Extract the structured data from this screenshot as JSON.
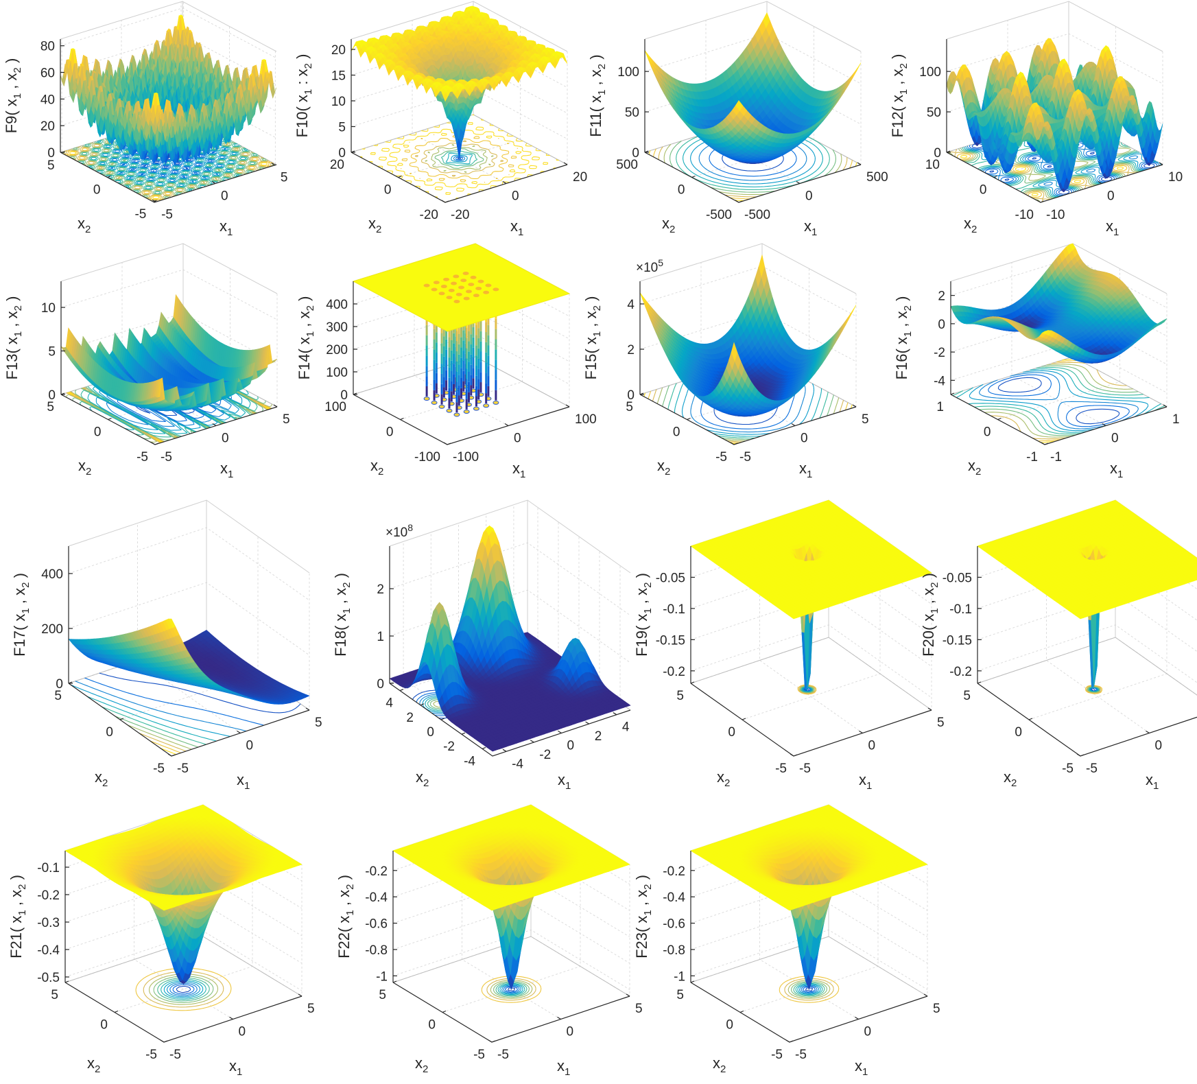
{
  "axis_labels": {
    "x1": [
      "x",
      "1"
    ],
    "x2": [
      "x",
      "2"
    ]
  },
  "chart_data": [
    {
      "type": "surface",
      "name": "F9",
      "zlabel": [
        "F9( x",
        "1",
        " , x",
        "2",
        " )"
      ],
      "zticks": [
        0,
        20,
        40,
        60,
        80
      ],
      "zlim": [
        0,
        85
      ],
      "xlim": [
        -5.12,
        5.12
      ],
      "x1ticks": [
        -5,
        0,
        5
      ],
      "x2ticks": [
        -5,
        0,
        5
      ],
      "contours": true
    },
    {
      "type": "surface",
      "name": "F10",
      "zlabel": [
        "F10( x",
        "1",
        " : x",
        "2",
        " )"
      ],
      "zticks": [
        0,
        5,
        10,
        15,
        20
      ],
      "zlim": [
        0,
        22
      ],
      "xlim": [
        -20,
        20
      ],
      "x1ticks": [
        -20,
        0,
        20
      ],
      "x2ticks": [
        -20,
        0,
        20
      ],
      "contours": true
    },
    {
      "type": "surface",
      "name": "F11",
      "zlabel": [
        "F11( x",
        "1",
        " , x",
        "2",
        " )"
      ],
      "zticks": [
        0,
        50,
        100
      ],
      "zlim": [
        0,
        140
      ],
      "xlim": [
        -500,
        500
      ],
      "x1ticks": [
        -500,
        0,
        500
      ],
      "x2ticks": [
        -500,
        0,
        500
      ],
      "contours": true
    },
    {
      "type": "surface",
      "name": "F12",
      "zlabel": [
        "F12( x",
        "1",
        " , x",
        "2",
        " )"
      ],
      "zticks": [
        0,
        50,
        100
      ],
      "zlim": [
        0,
        140
      ],
      "xlim": [
        -10,
        10
      ],
      "x1ticks": [
        -10,
        0,
        10
      ],
      "x2ticks": [
        -10,
        0,
        10
      ],
      "contours": true
    },
    {
      "type": "surface",
      "name": "F13",
      "zlabel": [
        "F13( x",
        "1",
        " , x",
        "2",
        " )"
      ],
      "zticks": [
        0,
        5,
        10
      ],
      "zlim": [
        0,
        13
      ],
      "xlim": [
        -5,
        5
      ],
      "x1ticks": [
        -5,
        0,
        5
      ],
      "x2ticks": [
        -5,
        0,
        5
      ],
      "contours": true
    },
    {
      "type": "surface",
      "name": "F14",
      "zlabel": [
        "F14( x",
        "1",
        " , x",
        "2",
        " )"
      ],
      "zticks": [
        0,
        100,
        200,
        300,
        400
      ],
      "zlim": [
        0,
        500
      ],
      "xlim": [
        -100,
        100
      ],
      "x1ticks": [
        -100,
        0,
        100
      ],
      "x2ticks": [
        -100,
        0,
        100
      ],
      "contours": false
    },
    {
      "type": "surface",
      "name": "F15",
      "zlabel": [
        "F15( x",
        "1",
        " , x",
        "2",
        " )"
      ],
      "zticks": [
        0,
        2,
        4
      ],
      "zlim": [
        0,
        5
      ],
      "exponent": [
        "×10",
        "5"
      ],
      "xlim": [
        -5,
        5
      ],
      "x1ticks": [
        -5,
        0,
        5
      ],
      "x2ticks": [
        -5,
        0,
        5
      ],
      "contours": true
    },
    {
      "type": "surface",
      "name": "F16",
      "zlabel": [
        "F16( x",
        "1",
        " , x",
        "2",
        " )"
      ],
      "zticks": [
        -4,
        -2,
        0,
        2
      ],
      "zlim": [
        -5,
        3
      ],
      "xlim": [
        -1,
        1
      ],
      "x1ticks": [
        -1,
        0,
        1
      ],
      "x2ticks": [
        -1,
        0,
        1
      ],
      "contours": true
    },
    {
      "type": "surface",
      "name": "F17",
      "zlabel": [
        "F17( x",
        "1",
        " , x",
        "2",
        " )"
      ],
      "zticks": [
        0,
        200,
        400
      ],
      "zlim": [
        0,
        500
      ],
      "xlim": [
        -5,
        5
      ],
      "x1ticks": [
        -5,
        0,
        5
      ],
      "x2ticks": [
        -5,
        0,
        5
      ],
      "contours": true
    },
    {
      "type": "surface",
      "name": "F18",
      "zlabel": [
        "F18( x",
        "1",
        " , x",
        "2",
        " )"
      ],
      "zticks": [
        0,
        1,
        2
      ],
      "zlim": [
        0,
        2.9
      ],
      "exponent": [
        "×10",
        "8"
      ],
      "xlim": [
        -5,
        5
      ],
      "x1ticks": [
        -4,
        -2,
        0,
        2,
        4
      ],
      "x2ticks": [
        -4,
        -2,
        0,
        2,
        4
      ],
      "contours": true
    },
    {
      "type": "surface",
      "name": "F19",
      "zlabel": [
        "F19( x",
        "1",
        " , x",
        "2",
        " )"
      ],
      "zticks": [
        -0.2,
        -0.15,
        -0.1,
        -0.05
      ],
      "zlim": [
        -0.22,
        0
      ],
      "xlim": [
        -5,
        5
      ],
      "x1ticks": [
        -5,
        0,
        5
      ],
      "x2ticks": [
        -5,
        0,
        5
      ],
      "contours": true
    },
    {
      "type": "surface",
      "name": "F20",
      "zlabel": [
        "F20( x",
        "1",
        " , x",
        "2",
        " )"
      ],
      "zticks": [
        -0.2,
        -0.15,
        -0.1,
        -0.05
      ],
      "zlim": [
        -0.22,
        0
      ],
      "xlim": [
        -5,
        5
      ],
      "x1ticks": [
        -5,
        0,
        5
      ],
      "x2ticks": [
        -5,
        0,
        5
      ],
      "contours": true
    },
    {
      "type": "surface",
      "name": "F21",
      "zlabel": [
        "F21( x",
        "1",
        " , x",
        "2",
        " )"
      ],
      "zticks": [
        -0.5,
        -0.4,
        -0.3,
        -0.2,
        -0.1
      ],
      "zlim": [
        -0.52,
        -0.04
      ],
      "xlim": [
        -5,
        5
      ],
      "x1ticks": [
        -5,
        0,
        5
      ],
      "x2ticks": [
        -5,
        0,
        5
      ],
      "contours": true
    },
    {
      "type": "surface",
      "name": "F22",
      "zlabel": [
        "F22( x",
        "1",
        " , x",
        "2",
        " )"
      ],
      "zticks": [
        -1,
        -0.8,
        -0.6,
        -0.4,
        -0.2
      ],
      "zlim": [
        -1.05,
        -0.05
      ],
      "xlim": [
        -5,
        5
      ],
      "x1ticks": [
        -5,
        0,
        5
      ],
      "x2ticks": [
        -5,
        0,
        5
      ],
      "contours": true
    },
    {
      "type": "surface",
      "name": "F23",
      "zlabel": [
        "F23( x",
        "1",
        " , x",
        "2",
        " )"
      ],
      "zticks": [
        -1,
        -0.8,
        -0.6,
        -0.4,
        -0.2
      ],
      "zlim": [
        -1.05,
        -0.05
      ],
      "xlim": [
        -5,
        5
      ],
      "x1ticks": [
        -5,
        0,
        5
      ],
      "x2ticks": [
        -5,
        0,
        5
      ],
      "contours": true
    }
  ]
}
